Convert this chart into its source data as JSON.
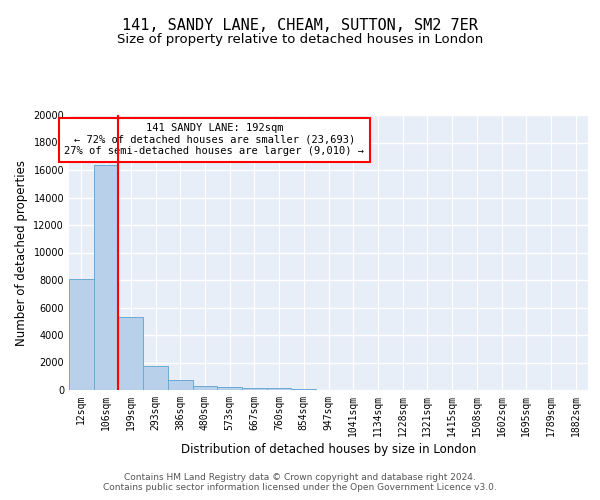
{
  "title": "141, SANDY LANE, CHEAM, SUTTON, SM2 7ER",
  "subtitle": "Size of property relative to detached houses in London",
  "xlabel": "Distribution of detached houses by size in London",
  "ylabel": "Number of detached properties",
  "bin_labels": [
    "12sqm",
    "106sqm",
    "199sqm",
    "293sqm",
    "386sqm",
    "480sqm",
    "573sqm",
    "667sqm",
    "760sqm",
    "854sqm",
    "947sqm",
    "1041sqm",
    "1134sqm",
    "1228sqm",
    "1321sqm",
    "1415sqm",
    "1508sqm",
    "1602sqm",
    "1695sqm",
    "1789sqm",
    "1882sqm"
  ],
  "bin_values": [
    8100,
    16400,
    5300,
    1750,
    700,
    300,
    200,
    150,
    150,
    100,
    0,
    0,
    0,
    0,
    0,
    0,
    0,
    0,
    0,
    0,
    0
  ],
  "bar_color": "#b8d0ea",
  "bar_edge_color": "#6aaad4",
  "property_line_color": "red",
  "annotation_text": "141 SANDY LANE: 192sqm\n← 72% of detached houses are smaller (23,693)\n27% of semi-detached houses are larger (9,010) →",
  "annotation_box_color": "white",
  "annotation_box_edge_color": "red",
  "ylim": [
    0,
    20000
  ],
  "yticks": [
    0,
    2000,
    4000,
    6000,
    8000,
    10000,
    12000,
    14000,
    16000,
    18000,
    20000
  ],
  "bg_color": "#e8eef8",
  "grid_color": "#ffffff",
  "footer_text": "Contains HM Land Registry data © Crown copyright and database right 2024.\nContains public sector information licensed under the Open Government Licence v3.0.",
  "title_fontsize": 11,
  "subtitle_fontsize": 9.5,
  "axis_label_fontsize": 8.5,
  "tick_fontsize": 7,
  "footer_fontsize": 6.5
}
